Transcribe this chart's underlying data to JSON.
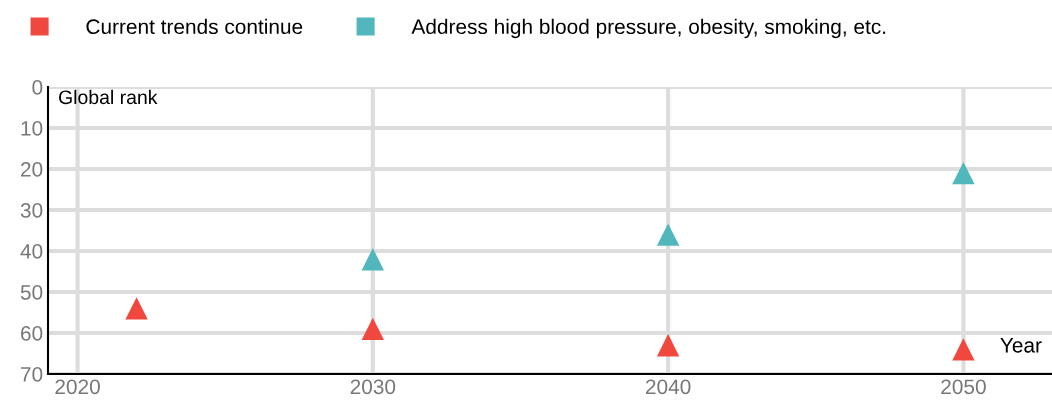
{
  "chart_data": {
    "type": "scatter",
    "xlabel": "Year",
    "ylabel": "Global rank",
    "series": [
      {
        "name": "Current trends continue",
        "color": "#f0483e",
        "x": [
          2022,
          2030,
          2040,
          2050
        ],
        "values": [
          54,
          59,
          63,
          64
        ]
      },
      {
        "name": "Address high blood pressure, obesity, smoking, etc.",
        "color": "#52b7bd",
        "x": [
          2030,
          2040,
          2050
        ],
        "values": [
          42,
          36,
          21
        ]
      }
    ],
    "xlim": [
      2019,
      2053
    ],
    "xticks": [
      2020,
      2030,
      2040,
      2050
    ],
    "ylim": [
      70,
      0
    ],
    "yticks": [
      0,
      10,
      20,
      30,
      40,
      50,
      60,
      70
    ],
    "grid": true,
    "legend": "top",
    "marker": "triangle"
  }
}
